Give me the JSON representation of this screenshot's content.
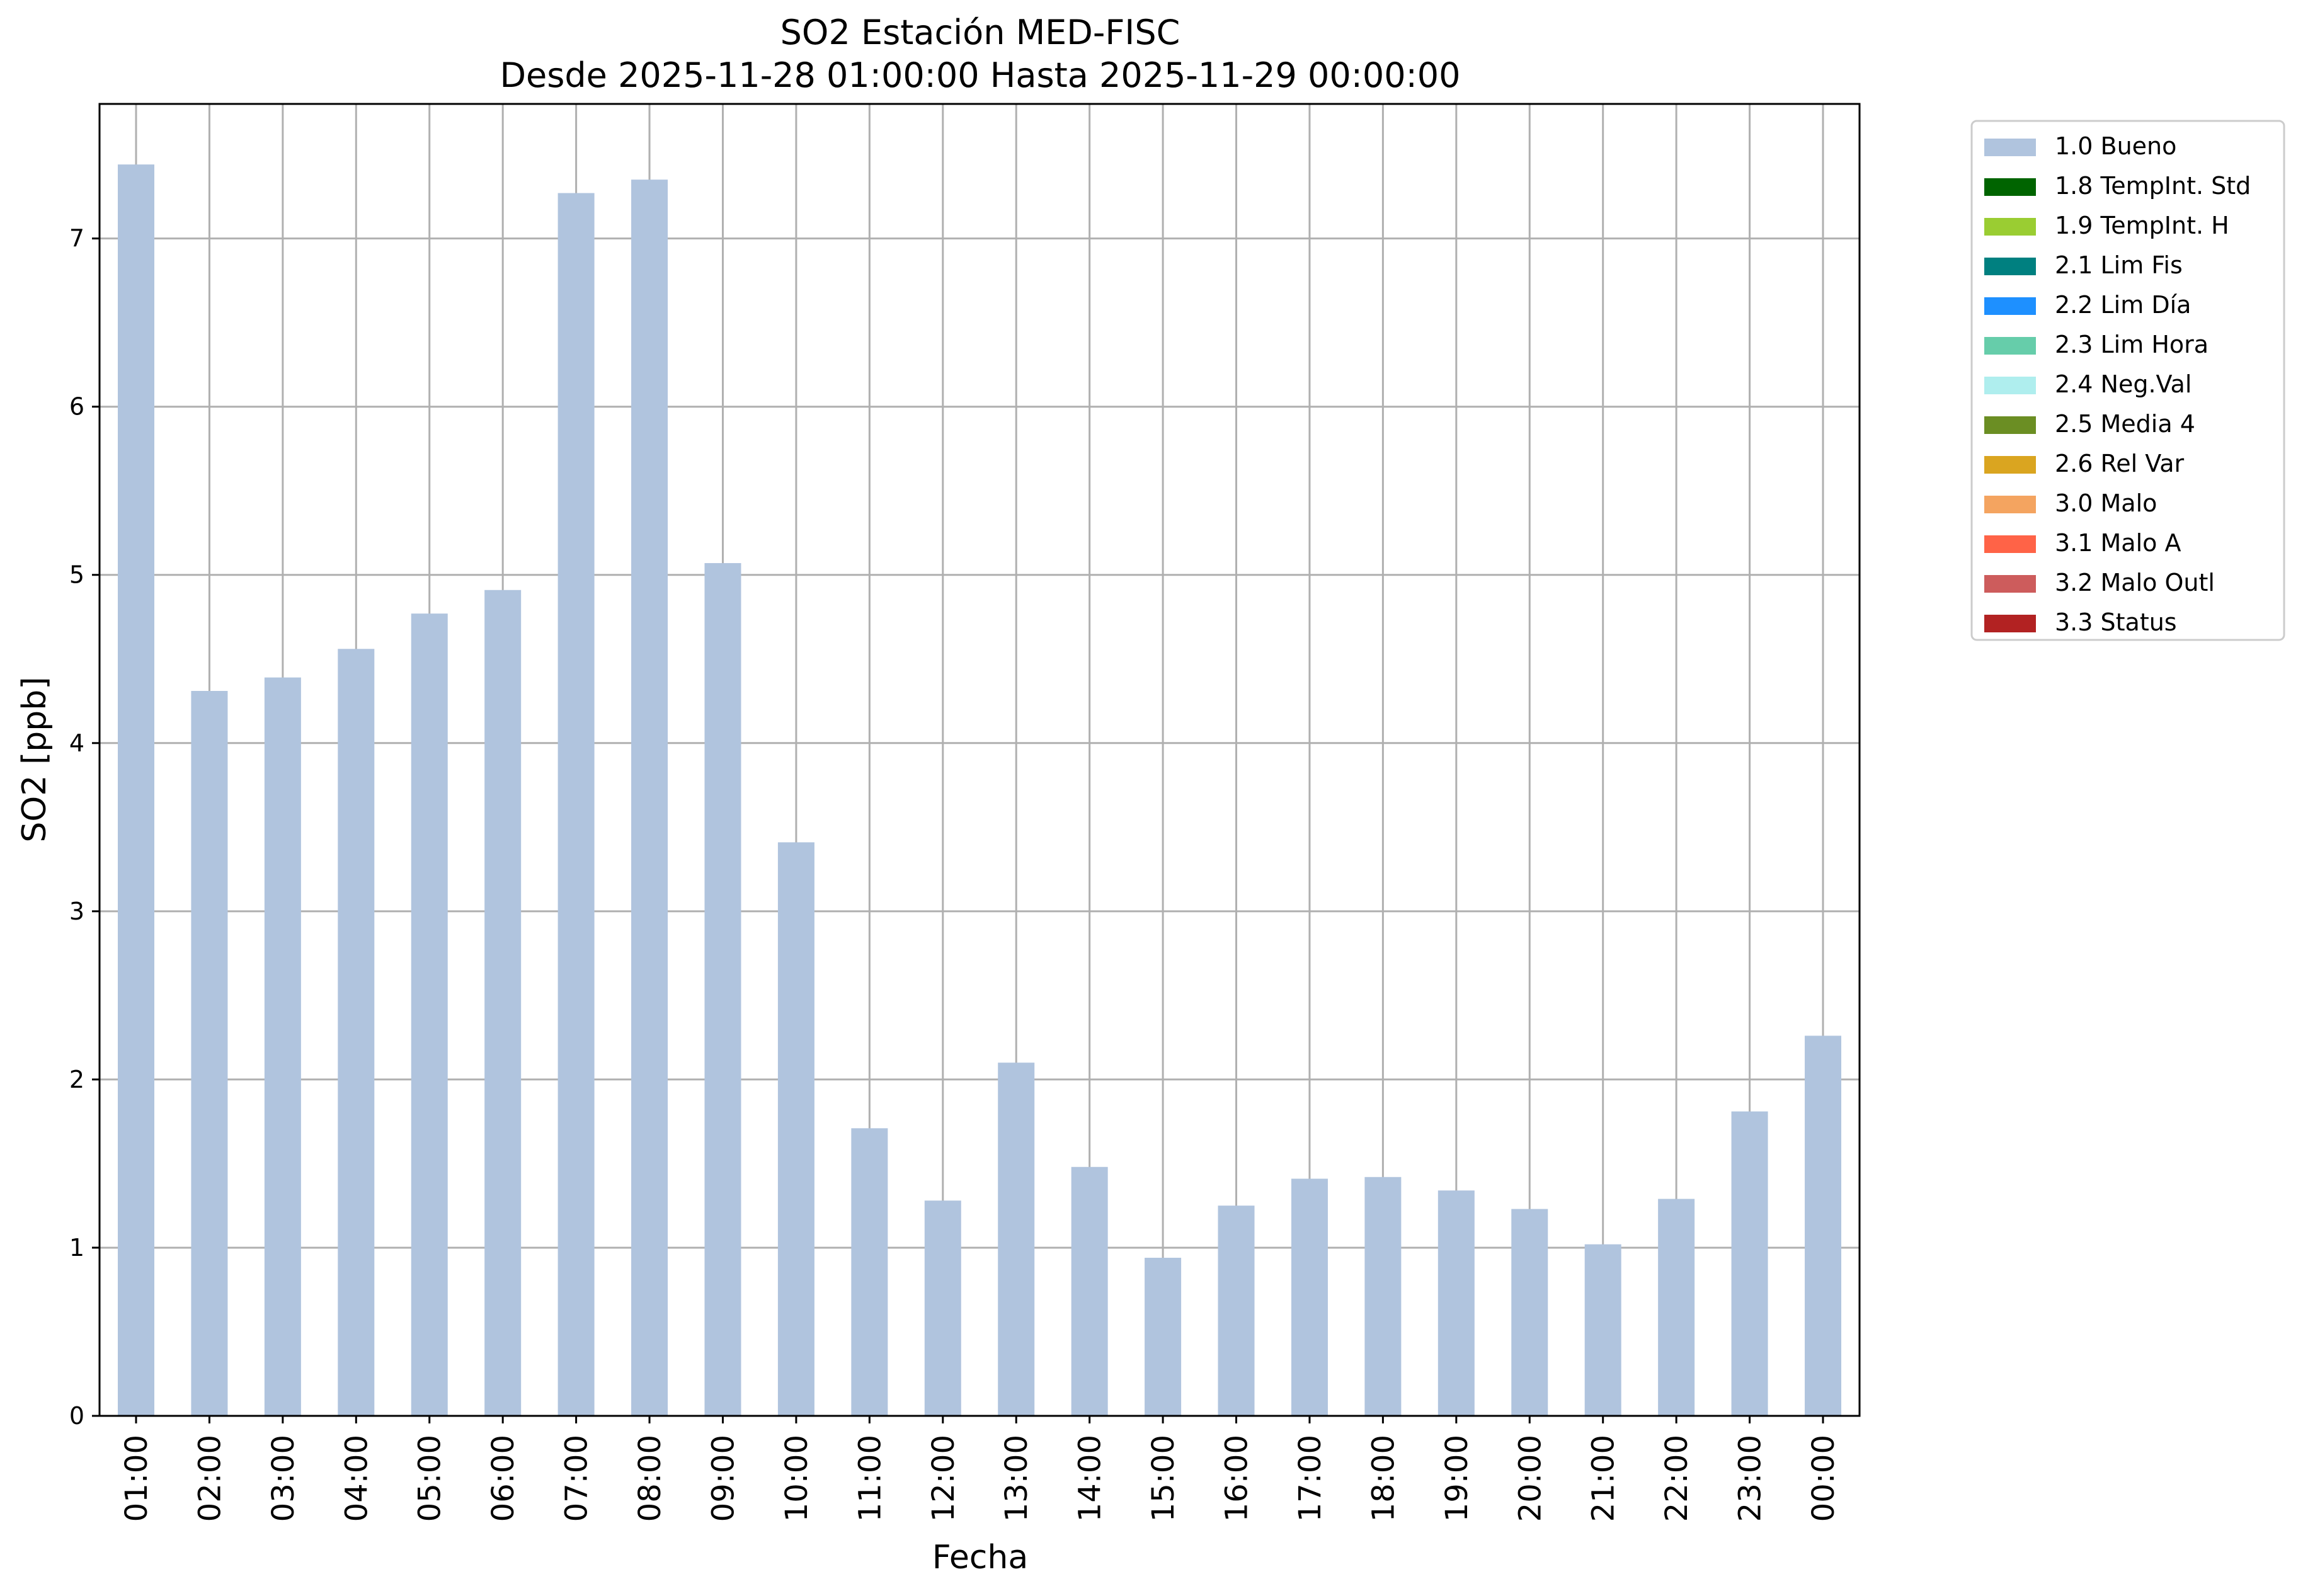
{
  "chart_data": {
    "type": "bar",
    "title": "SO2 Estación MED-FISC",
    "subtitle": "Desde 2025-11-28 01:00:00 Hasta 2025-11-29 00:00:00",
    "xlabel": "Fecha",
    "ylabel": "SO2 [ppb]",
    "ylim": [
      0,
      7.8
    ],
    "yticks": [
      "0",
      "1",
      "2",
      "3",
      "4",
      "5",
      "6",
      "7"
    ],
    "grid": true,
    "legend_position": "outside-top-right",
    "categories": [
      "01:00",
      "02:00",
      "03:00",
      "04:00",
      "05:00",
      "06:00",
      "07:00",
      "08:00",
      "09:00",
      "10:00",
      "11:00",
      "12:00",
      "13:00",
      "14:00",
      "15:00",
      "16:00",
      "17:00",
      "18:00",
      "19:00",
      "20:00",
      "21:00",
      "22:00",
      "23:00",
      "00:00"
    ],
    "series": [
      {
        "name": "1.0 Bueno",
        "color": "#b0c4de",
        "values": [
          7.44,
          4.31,
          4.39,
          4.56,
          4.77,
          4.91,
          7.27,
          7.35,
          5.07,
          3.41,
          1.71,
          1.28,
          2.1,
          1.48,
          0.94,
          1.25,
          1.41,
          1.42,
          1.34,
          1.23,
          1.02,
          1.29,
          1.81,
          2.26
        ]
      }
    ],
    "legend": [
      {
        "label": "1.0 Bueno",
        "color": "#b0c4de"
      },
      {
        "label": "1.8 TempInt. Std",
        "color": "#006400"
      },
      {
        "label": "1.9 TempInt. H",
        "color": "#9acd32"
      },
      {
        "label": "2.1 Lim Fis",
        "color": "#008080"
      },
      {
        "label": "2.2 Lim Día",
        "color": "#1e90ff"
      },
      {
        "label": "2.3 Lim Hora",
        "color": "#66cdaa"
      },
      {
        "label": "2.4 Neg.Val",
        "color": "#afeeee"
      },
      {
        "label": "2.5 Media 4",
        "color": "#6b8e23"
      },
      {
        "label": "2.6 Rel Var",
        "color": "#daa520"
      },
      {
        "label": "3.0 Malo",
        "color": "#f4a460"
      },
      {
        "label": "3.1 Malo A",
        "color": "#ff6347"
      },
      {
        "label": "3.2 Malo Outl",
        "color": "#cd5c5c"
      },
      {
        "label": "3.3 Status",
        "color": "#b22222"
      }
    ]
  }
}
